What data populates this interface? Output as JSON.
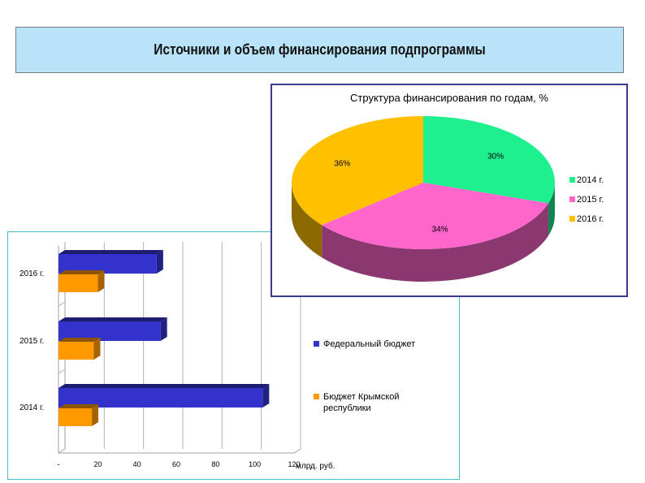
{
  "header": {
    "title": "Источники и объем финансирования подпрограммы"
  },
  "chart_data": [
    {
      "type": "bar",
      "orientation": "horizontal",
      "stacked": false,
      "style": "3d",
      "categories": [
        "2014 г.",
        "2015 г.",
        "2016 г."
      ],
      "series": [
        {
          "name": "Федеральный бюджет",
          "values": [
            104,
            52,
            50
          ],
          "color": "#3333cc"
        },
        {
          "name": "Бюджет Крымской республики",
          "values": [
            17,
            18,
            20
          ],
          "color": "#ff9900"
        }
      ],
      "xlim": [
        0,
        120
      ],
      "xticks": [
        "-",
        "20",
        "40",
        "60",
        "80",
        "100",
        "120"
      ],
      "unit_label": "млрд. руб.",
      "grid": true,
      "legend_position": "right"
    },
    {
      "type": "pie",
      "style": "3d",
      "title": "Структура финансирования по годам, %",
      "labels": [
        "2014 г.",
        "2015 г.",
        "2016 г."
      ],
      "values": [
        30,
        34,
        36
      ],
      "value_labels": [
        "30%",
        "34%",
        "36%"
      ],
      "colors": [
        "#1ef08f",
        "#ff66cc",
        "#ffc000"
      ],
      "legend_position": "right"
    }
  ]
}
